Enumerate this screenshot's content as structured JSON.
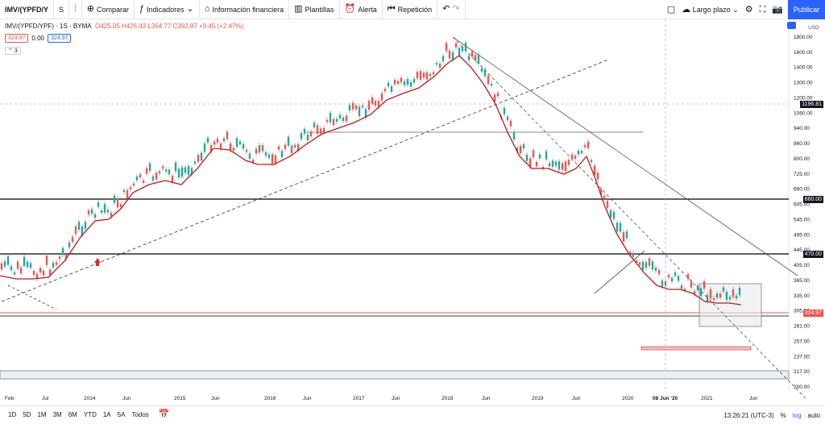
{
  "toolbar": {
    "symbol": "IMV/(YPFD/Y",
    "interval": "S",
    "compare": "Comparar",
    "indicators": "Indicadores",
    "financial": "Información financiera",
    "templates": "Plantillas",
    "alert": "Alerta",
    "replay": "Repetición",
    "layout": "Largo plazo",
    "publish": "Publicar"
  },
  "legend": {
    "title": "IMV/(YPFD/YPF) · 1S · BYMA",
    "ohlc": "O425.05 H425.43 L364.77 C392.87 +9.45 (+2.47%)",
    "price_badge": "324.97",
    "zero": "0.00",
    "price_badge2": "324.97",
    "collapse": "3"
  },
  "chart_data": {
    "type": "candlestick",
    "currency": "USD",
    "y_ticks": [
      "1800.00",
      "1600.00",
      "1400.00",
      "1300.00",
      "1200.00",
      "1060.00",
      "940.00",
      "860.00",
      "800.00",
      "725.00",
      "660.00",
      "605.00",
      "545.00",
      "495.00",
      "445.00",
      "405.00",
      "365.00",
      "335.00",
      "305.00",
      "281.00",
      "257.00",
      "237.00",
      "217.00",
      "200.00"
    ],
    "x_ticks": [
      "Feb",
      "Jul",
      "2014",
      "Jun",
      "2015",
      "Jun",
      "2016",
      "Jun",
      "2017",
      "Jun",
      "2018",
      "Jun",
      "2019",
      "Jun",
      "2020",
      "08 Jun '20",
      "2021",
      "Jun"
    ],
    "price_labels": {
      "crosshair": "1196.81",
      "line_660": "660.00",
      "line_470": "470.00",
      "current": "324.97"
    }
  },
  "bottombar": {
    "ranges": [
      "1D",
      "5D",
      "1M",
      "3M",
      "6M",
      "YTD",
      "1A",
      "5A",
      "Todos"
    ],
    "time": "13:26:21 (UTC-3)",
    "percent": "%",
    "log": "log",
    "auto": "auto"
  }
}
